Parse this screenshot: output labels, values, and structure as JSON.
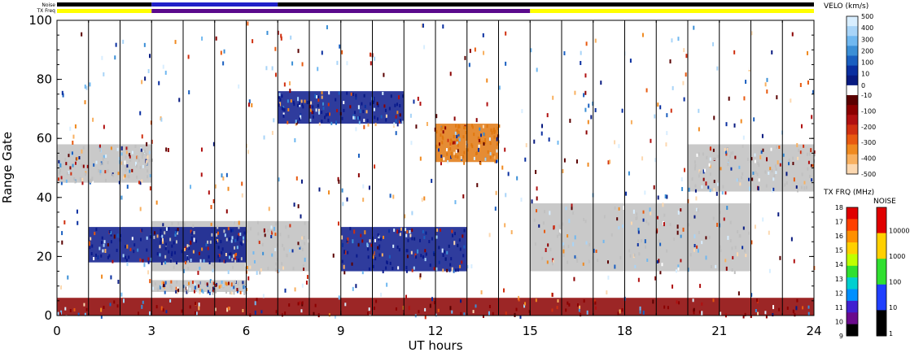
{
  "chart_data": {
    "type": "heatmap",
    "title": "",
    "xlabel": "UT hours",
    "ylabel": "Range Gate",
    "xlim": [
      0,
      24
    ],
    "ylim": [
      0,
      100
    ],
    "x_ticks": [
      "0",
      "3",
      "6",
      "9",
      "12",
      "15",
      "18",
      "21",
      "24"
    ],
    "y_ticks": [
      "0",
      "20",
      "40",
      "60",
      "80",
      "100"
    ],
    "scan_boundaries_hours": [
      1,
      2,
      3,
      4,
      5,
      6,
      7,
      8,
      9,
      10,
      11,
      12,
      13,
      14,
      15,
      16,
      17,
      18,
      19,
      20,
      21,
      22,
      23
    ],
    "top_bars": {
      "noise_label": "Noise",
      "txfreq_label": "TX Freq",
      "txfreq_segments": [
        {
          "start": 0,
          "end": 3,
          "color": "#ffff00"
        },
        {
          "start": 3,
          "end": 15,
          "color": "#5a0a8c"
        },
        {
          "start": 15,
          "end": 24,
          "color": "#ffff00"
        }
      ],
      "noise_segments": [
        {
          "start": 0,
          "end": 3,
          "color": "#000000"
        },
        {
          "start": 3,
          "end": 7,
          "color": "#2020c8"
        },
        {
          "start": 7,
          "end": 24,
          "color": "#000000"
        }
      ]
    },
    "scatter_regions": [
      {
        "name": "ground scatter",
        "t0": 0,
        "t1": 3,
        "g0": 45,
        "g1": 58,
        "color": "#c0c0c0"
      },
      {
        "name": "ground scatter",
        "t0": 3,
        "t1": 8,
        "g0": 15,
        "g1": 32,
        "color": "#c0c0c0"
      },
      {
        "name": "ground scatter",
        "t0": 3,
        "t1": 6,
        "g0": 8,
        "g1": 12,
        "color": "#c0c0c0"
      },
      {
        "name": "ground scatter",
        "t0": 15,
        "t1": 22,
        "g0": 15,
        "g1": 38,
        "color": "#c0c0c0"
      },
      {
        "name": "ground scatter",
        "t0": 20,
        "t1": 24,
        "g0": 42,
        "g1": 58,
        "color": "#c0c0c0"
      },
      {
        "name": "negative velocity",
        "t0": 0,
        "t1": 24,
        "g0": 0,
        "g1": 6,
        "color": "#8b0000"
      },
      {
        "name": "positive velocity",
        "t0": 1,
        "t1": 6,
        "g0": 18,
        "g1": 30,
        "color": "#0a1a8c"
      },
      {
        "name": "positive velocity",
        "t0": 9,
        "t1": 13,
        "g0": 15,
        "g1": 30,
        "color": "#0a1a8c"
      },
      {
        "name": "positive velocity",
        "t0": 7,
        "t1": 11,
        "g0": 65,
        "g1": 76,
        "color": "#0a1a8c"
      },
      {
        "name": "negative velocity",
        "t0": 12,
        "t1": 14,
        "g0": 52,
        "g1": 65,
        "color": "#e07810"
      }
    ],
    "velocity_colorbar": {
      "label": "VELO (km/s)",
      "ticks_positive": [
        "500",
        "400",
        "300",
        "200",
        "100",
        "10",
        "0"
      ],
      "ticks_negative": [
        "-10",
        "-100",
        "-200",
        "-300",
        "-400",
        "-500"
      ],
      "colors": [
        "#d8eeff",
        "#a8d4f8",
        "#70b8f0",
        "#3b8fd6",
        "#1a5fc0",
        "#0a2fa0",
        "#081a80",
        "#ffffff",
        "#5a0000",
        "#8b0000",
        "#b01010",
        "#d03010",
        "#e85a10",
        "#f08a20",
        "#f8b060",
        "#fcd8b0"
      ]
    },
    "txfreq_colorbar": {
      "label": "TX FRQ (MHz)",
      "ticks": [
        "18",
        "17",
        "16",
        "15",
        "14",
        "13",
        "12",
        "11",
        "10",
        "9"
      ],
      "colors": [
        "#e00000",
        "#ff4000",
        "#ff9000",
        "#ffd000",
        "#c0ff00",
        "#30e030",
        "#00d0d0",
        "#0090ff",
        "#4020d0",
        "#6a0a8c",
        "#000000"
      ]
    },
    "noise_colorbar": {
      "label": "NOISE",
      "ticks": [
        "10000",
        "1000",
        "100",
        "10",
        "1"
      ],
      "colors": [
        "#e00000",
        "#ffd000",
        "#30e030",
        "#2040ff",
        "#000000"
      ]
    }
  }
}
